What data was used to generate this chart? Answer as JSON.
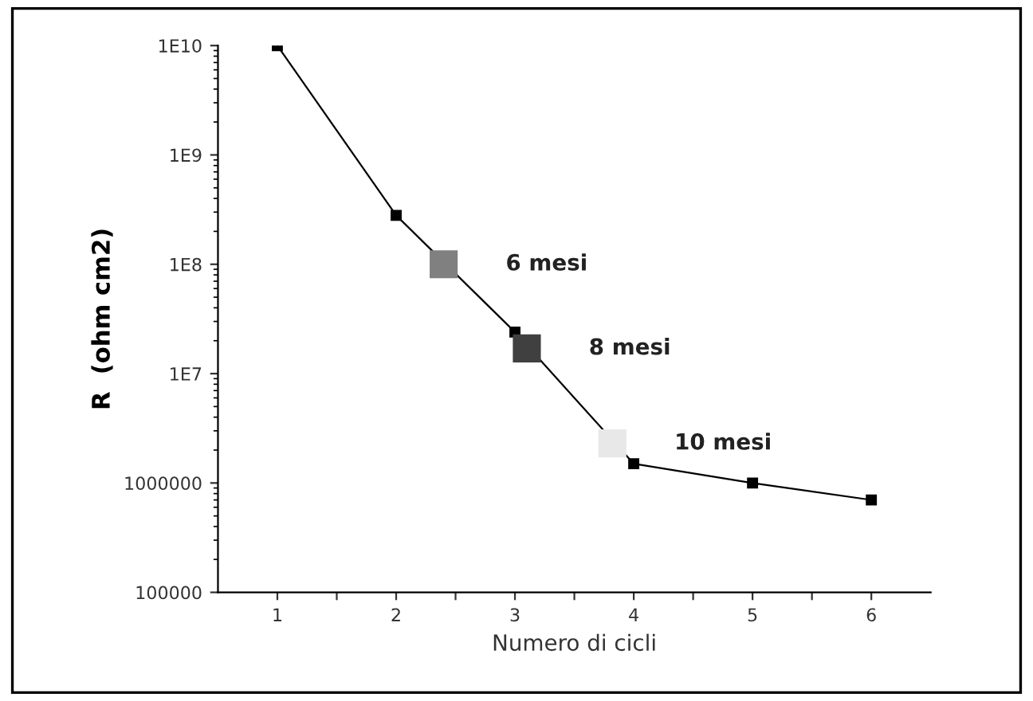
{
  "chart_data": {
    "type": "line",
    "xlabel": "Numero di cicli",
    "ylabel": "R  (ohm cm2)",
    "log": "y",
    "xlim": [
      0.5,
      6.5
    ],
    "xticks": [
      1,
      {
        "value": 1.5,
        "label": null
      },
      2,
      {
        "value": 2.5,
        "label": null
      },
      3,
      {
        "value": 3.5,
        "label": null
      },
      4,
      {
        "value": 4.5,
        "label": null
      },
      5,
      {
        "value": 5.5,
        "label": null
      },
      6
    ],
    "ylim": [
      100000,
      10000000000
    ],
    "yticks": [
      {
        "value": 100000,
        "label": "100000"
      },
      {
        "value": 1000000,
        "label": "1000000"
      },
      {
        "value": 10000000,
        "label": "1E7"
      },
      {
        "value": 100000000,
        "label": "1E8"
      },
      {
        "value": 1000000000,
        "label": "1E9"
      },
      {
        "value": 10000000000,
        "label": "1E10"
      }
    ],
    "grid": false,
    "legend": false,
    "series": [
      {
        "color": "#000000",
        "marker": "square",
        "x": [
          1,
          2,
          3,
          4,
          5,
          6
        ],
        "values": [
          10000000000,
          280000000,
          24000000,
          1500000,
          1000000,
          700000
        ]
      },
      {
        "type": "scatter",
        "marker": "square",
        "colors": [
          "#808080",
          "#404040",
          "#e8e8e8"
        ],
        "x": [
          2.4,
          3.1,
          3.82
        ],
        "values": [
          100000000,
          17000000,
          2300000
        ]
      }
    ],
    "annotations": [
      {
        "text": "6 mesi",
        "x": 2.4,
        "y": 100000000
      },
      {
        "text": "8 mesi",
        "x": 3.1,
        "y": 17000000
      },
      {
        "text": "10 mesi",
        "x": 3.82,
        "y": 2300000
      }
    ]
  }
}
